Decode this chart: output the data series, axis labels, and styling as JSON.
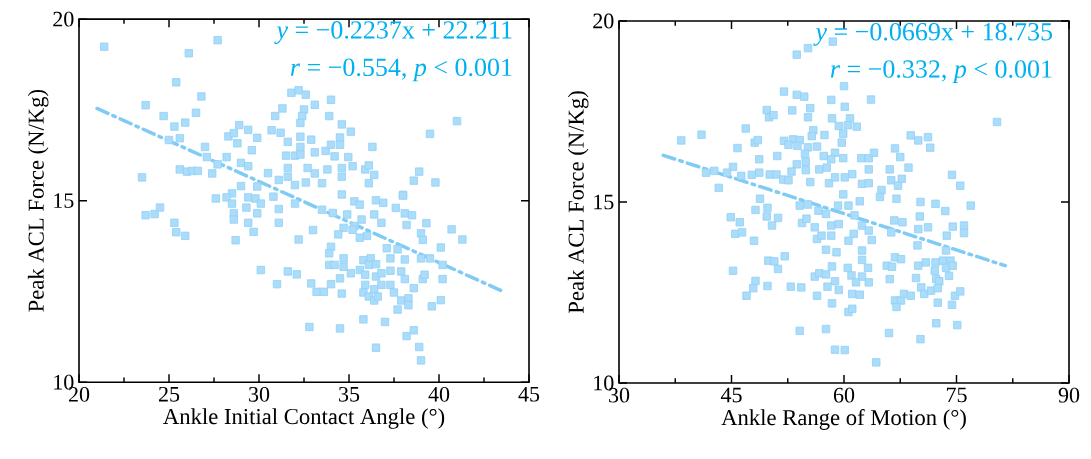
{
  "chart_data": [
    {
      "type": "scatter",
      "xlabel": "Ankle Initial Contact Angle (°)",
      "ylabel": "Peak ACL Force (N/Kg)",
      "xlim": [
        20,
        45
      ],
      "ylim": [
        10,
        20
      ],
      "xticks": [
        20,
        25,
        30,
        35,
        40,
        45
      ],
      "yticks": [
        10,
        15,
        20
      ],
      "annotations": [
        "*y* = −0.2237x + 22.211",
        "*r* = −0.554, *p* < 0.001"
      ],
      "series": [
        {
          "type": "scatter",
          "marker": "square",
          "color": "#8fd0f7",
          "x": [
            21.4,
            27.7,
            26.1,
            25.4,
            26.8,
            23.7,
            24.7,
            26.5,
            25.3,
            25.9,
            25.0,
            25.6,
            23.5,
            27.0,
            27.1,
            25.6,
            26.0,
            26.3,
            26.6,
            27.4,
            27.7,
            28.2,
            28.3,
            28.6,
            28.9,
            28.8,
            29.4,
            29.9,
            29.6,
            29.0,
            29.4,
            30.5,
            30.7,
            31.2,
            30.9,
            31.3,
            31.8,
            32.2,
            32.6,
            33.1,
            32.5,
            32.4,
            32.3,
            34.0,
            33.9,
            34.6,
            35.1,
            31.6,
            32.3,
            32.3,
            32.9,
            31.5,
            32.0,
            32.3,
            33.1,
            33.7,
            34.0,
            34.5,
            34.5,
            34.2,
            34.96,
            36.3,
            39.5,
            41.0,
            31.6,
            32.7,
            33.8,
            34.6,
            35.2,
            35.9,
            36.1,
            31.6,
            33.1,
            34.6,
            36.4,
            38.9,
            38.6,
            39.8,
            36.1,
            31.1,
            32.0,
            32.6,
            33.5,
            28.5,
            29.0,
            29.9,
            38.0,
            23.7,
            24.2,
            24.5,
            25.3,
            25.4,
            25.9,
            27.6,
            28.2,
            28.5,
            28.6,
            28.6,
            28.7,
            29.4,
            29.8,
            30.1,
            29.3,
            29.9,
            29.4,
            29.7,
            30.8,
            31.1,
            31.1,
            32.0,
            32.2,
            33.0,
            30.1,
            31.6,
            32.1,
            31.0,
            32.9,
            33.2,
            33.6,
            34.6,
            33.5,
            34.1,
            34.9,
            35.3,
            35.6,
            34.6,
            36.5,
            36.9,
            38.0,
            37.6,
            38.1,
            38.5,
            36.4,
            36.8,
            35.7,
            35.3,
            35.2,
            34.7,
            34.4,
            35.6,
            36.0,
            38.2,
            39.3,
            39.0,
            39.1,
            40.7,
            41.3,
            40.1,
            37.1,
            37.7,
            38.1,
            39.0,
            39.5,
            40.2,
            40.2,
            34.0,
            33.9,
            33.9,
            34.2,
            34.7,
            34.7,
            35.8,
            36.2,
            36.1,
            36.5,
            37.3,
            35.1,
            35.6,
            35.9,
            36.5,
            36.8,
            37.3,
            37.9,
            38.1,
            37.3,
            35.9,
            36.4,
            36.8,
            35.8,
            36.1,
            36.4,
            36.6,
            37.5,
            38.6,
            37.9,
            38.3,
            38.3,
            37.7,
            39.1,
            39.2,
            39.6,
            40.1,
            34.0,
            34.5,
            32.8,
            34.5,
            35.8,
            37.0,
            38.2,
            38.6,
            36.5,
            38.9,
            39.0
          ],
          "values": [
            19.24,
            19.42,
            19.06,
            18.26,
            17.87,
            17.63,
            17.33,
            17.42,
            17.04,
            17.15,
            16.67,
            16.72,
            15.64,
            16.48,
            16.2,
            15.86,
            15.8,
            15.82,
            15.82,
            15.75,
            16.0,
            16.2,
            16.77,
            16.86,
            17.08,
            16.58,
            16.95,
            16.73,
            16.39,
            16.04,
            15.95,
            15.76,
            16.94,
            16.87,
            17.33,
            17.54,
            17.97,
            18.04,
            17.92,
            17.64,
            17.51,
            17.33,
            17.14,
            17.78,
            17.33,
            17.1,
            16.9,
            16.62,
            16.76,
            16.48,
            16.68,
            16.24,
            16.24,
            16.27,
            16.33,
            16.37,
            16.54,
            16.74,
            16.54,
            16.22,
            16.2,
            16.48,
            16.84,
            17.19,
            15.9,
            15.9,
            15.86,
            15.9,
            15.95,
            15.86,
            15.97,
            15.66,
            15.75,
            15.66,
            15.71,
            15.8,
            15.55,
            15.5,
            15.48,
            15.57,
            15.43,
            15.5,
            15.48,
            15.2,
            15.4,
            15.39,
            15.16,
            14.6,
            14.63,
            14.81,
            14.39,
            14.13,
            14.03,
            15.06,
            15.09,
            14.92,
            14.65,
            14.48,
            13.91,
            15.09,
            15.06,
            14.92,
            14.81,
            14.65,
            14.39,
            14.14,
            15.11,
            14.77,
            14.39,
            14.92,
            13.93,
            14.19,
            13.09,
            13.05,
            12.97,
            12.7,
            12.72,
            12.49,
            12.49,
            12.44,
            14.75,
            14.66,
            14.62,
            14.98,
            14.89,
            15.17,
            15.01,
            14.94,
            15.14,
            14.8,
            14.65,
            14.6,
            14.62,
            14.39,
            14.48,
            14.3,
            14.2,
            14.25,
            14.07,
            13.98,
            14.03,
            14.33,
            14.38,
            14.1,
            13.92,
            14.21,
            13.93,
            13.71,
            13.69,
            13.66,
            13.38,
            13.41,
            13.41,
            13.23,
            12.84,
            13.73,
            13.55,
            13.23,
            13.23,
            13.41,
            13.18,
            13.36,
            13.41,
            13.23,
            13.25,
            13.41,
            13.0,
            13.09,
            12.96,
            12.91,
            13.0,
            13.07,
            13.05,
            12.84,
            12.68,
            12.68,
            12.56,
            12.68,
            12.47,
            12.36,
            12.25,
            12.36,
            12.47,
            12.59,
            12.25,
            12.31,
            12.12,
            12.0,
            12.84,
            12.96,
            12.09,
            12.26,
            12.7,
            12.86,
            11.52,
            11.48,
            11.73,
            11.66,
            11.27,
            11.43,
            10.95,
            10.97,
            10.6
          ]
        },
        {
          "type": "line",
          "line_style": "dashed",
          "color": "#7fcbf5",
          "x": [
            21.0,
            43.6
          ],
          "values": [
            17.54,
            12.49
          ]
        }
      ]
    },
    {
      "type": "scatter",
      "xlabel": "Ankle Range of Motion (°)",
      "ylabel": "Peak ACL Force (N/Kg)",
      "xlim": [
        30,
        90
      ],
      "ylim": [
        10,
        20
      ],
      "xticks": [
        30,
        45,
        60,
        75,
        90
      ],
      "yticks": [
        10,
        15,
        20
      ],
      "annotations": [
        "*y* = −0.0669x + 18.735",
        "*r* = −0.332, *p* < 0.001"
      ],
      "series": [
        {
          "type": "scatter",
          "marker": "square",
          "color": "#8fd0f7",
          "x": [
            58.5,
            55.2,
            53.7,
            52.0,
            53.7,
            54.7,
            58.3,
            60.0,
            63.6,
            49.7,
            50.0,
            50.6,
            53.1,
            55.5,
            55.2,
            60.1,
            58.4,
            60.8,
            59.3,
            60.5,
            61.7,
            46.9,
            41.0,
            38.3,
            55.9,
            55.7,
            57.4,
            59.9,
            59.7,
            48.1,
            48.5,
            52.0,
            53.2,
            54.1,
            52.6,
            53.8,
            45.8,
            55.2,
            56.4,
            54.8,
            58.8,
            57.3,
            58.3,
            59.9,
            62.3,
            63.3,
            64.0,
            66.8,
            67.5,
            68.9,
            69.9,
            71.2,
            71.5,
            48.7,
            51.1,
            53.7,
            54.9,
            54.9,
            56.7,
            57.7,
            63.3,
            66.1,
            68.6,
            45.2,
            41.6,
            42.7,
            44.4,
            46.3,
            47.7,
            48.7,
            50.1,
            51.0,
            43.3,
            51.9,
            52.6,
            53.0,
            55.5,
            58.0,
            58.8,
            60.1,
            61.1,
            62.4,
            63.3,
            65.0,
            66.3,
            67.7,
            74.4,
            75.5,
            80.4,
            67.2,
            44.9,
            46.1,
            45.5,
            46.4,
            48.0,
            48.2,
            48.8,
            49.7,
            49.8,
            50.4,
            51.2,
            54.1,
            55.2,
            54.4,
            55.0,
            56.1,
            56.6,
            57.6,
            58.3,
            59.3,
            56.4,
            57.0,
            58.3,
            59.2,
            60.6,
            59.9,
            62.1,
            61.4,
            62.4,
            61.3,
            60.6,
            63.3,
            63.7,
            64.8,
            67.0,
            66.7,
            67.8,
            66.3,
            70.2,
            72.2,
            73.5,
            76.9,
            70.1,
            71.2,
            69.9,
            69.8,
            74.5,
            76.0,
            76.0,
            73.7,
            73.6,
            57.6,
            59.0,
            62.4,
            62.4,
            52.1,
            49.9,
            50.7,
            51.2,
            45.2,
            58.4,
            60.5,
            63.2,
            61.0,
            62.4,
            63.3,
            61.6,
            56.1,
            56.7,
            57.6,
            58.8,
            59.3,
            57.8,
            65.7,
            66.8,
            67.6,
            66.4,
            66.1,
            69.9,
            70.9,
            72.2,
            73.2,
            74.2,
            72.1,
            72.3,
            73.6,
            74.5,
            74.0,
            69.6,
            70.3,
            70.7,
            71.6,
            72.7,
            72.5,
            48.2,
            47.9,
            49.8,
            47.0,
            52.9,
            54.3,
            56.4,
            58.4,
            61.1,
            62.1,
            60.6,
            61.1,
            66.8,
            67.6,
            67.0,
            68.0,
            68.9,
            72.5,
            74.4,
            74.8,
            75.5,
            72.3,
            75.1,
            54.1,
            57.6,
            66.0,
            70.2,
            58.8,
            60.1,
            64.3
          ],
          "values": [
            19.43,
            19.25,
            19.07,
            18.05,
            17.96,
            17.91,
            17.82,
            18.2,
            17.83,
            17.54,
            17.34,
            17.4,
            17.53,
            17.59,
            17.34,
            17.63,
            17.31,
            17.31,
            17.1,
            17.12,
            17.08,
            17.03,
            16.86,
            16.7,
            16.98,
            16.82,
            16.85,
            16.89,
            16.64,
            16.64,
            16.71,
            16.69,
            16.73,
            16.71,
            16.58,
            16.55,
            16.49,
            16.51,
            16.53,
            16.33,
            16.36,
            16.27,
            16.18,
            16.21,
            16.21,
            16.21,
            16.36,
            16.48,
            16.24,
            16.84,
            16.7,
            16.79,
            16.5,
            16.18,
            16.27,
            16.04,
            16.11,
            15.88,
            15.9,
            15.95,
            15.9,
            15.9,
            15.95,
            15.97,
            15.81,
            15.86,
            15.81,
            15.72,
            15.75,
            15.81,
            15.76,
            15.76,
            15.39,
            15.62,
            15.6,
            15.84,
            15.55,
            15.52,
            15.68,
            15.68,
            15.77,
            15.5,
            15.52,
            15.33,
            15.6,
            15.64,
            15.75,
            15.45,
            17.21,
            15.45,
            14.58,
            14.44,
            14.12,
            14.16,
            13.93,
            14.78,
            15.09,
            14.6,
            14.84,
            14.35,
            14.56,
            14.9,
            14.93,
            14.42,
            14.54,
            14.3,
            14.76,
            14.67,
            14.35,
            14.39,
            13.98,
            14.07,
            14.07,
            14.9,
            14.9,
            15.21,
            15.02,
            14.63,
            14.35,
            14.12,
            13.93,
            14.21,
            13.95,
            15.14,
            15.09,
            14.49,
            14.44,
            14.16,
            15.0,
            14.95,
            14.75,
            14.9,
            14.6,
            14.3,
            14.25,
            13.8,
            14.32,
            14.35,
            14.14,
            14.07,
            13.66,
            13.68,
            13.61,
            13.66,
            13.4,
            13.5,
            13.38,
            13.36,
            13.15,
            13.1,
            13.22,
            13.18,
            13.18,
            12.97,
            12.94,
            12.78,
            12.78,
            12.94,
            13.03,
            13.0,
            12.81,
            12.57,
            12.66,
            13.24,
            13.47,
            13.42,
            13.21,
            12.87,
            13.24,
            13.33,
            13.33,
            13.38,
            13.38,
            13.1,
            12.87,
            13.18,
            13.24,
            12.96,
            12.9,
            12.64,
            12.46,
            12.55,
            12.81,
            12.62,
            12.82,
            12.62,
            12.68,
            12.41,
            12.66,
            12.64,
            12.41,
            12.2,
            12.46,
            12.44,
            11.96,
            12.05,
            12.28,
            12.28,
            12.1,
            12.46,
            12.41,
            12.22,
            12.16,
            12.41,
            12.53,
            11.65,
            11.6,
            11.44,
            11.49,
            11.38,
            11.21,
            10.92,
            10.91,
            10.57
          ]
        },
        {
          "type": "line",
          "line_style": "dashed",
          "color": "#7fcbf5",
          "x": [
            35.9,
            81.5
          ],
          "values": [
            16.29,
            13.24
          ]
        }
      ]
    }
  ]
}
